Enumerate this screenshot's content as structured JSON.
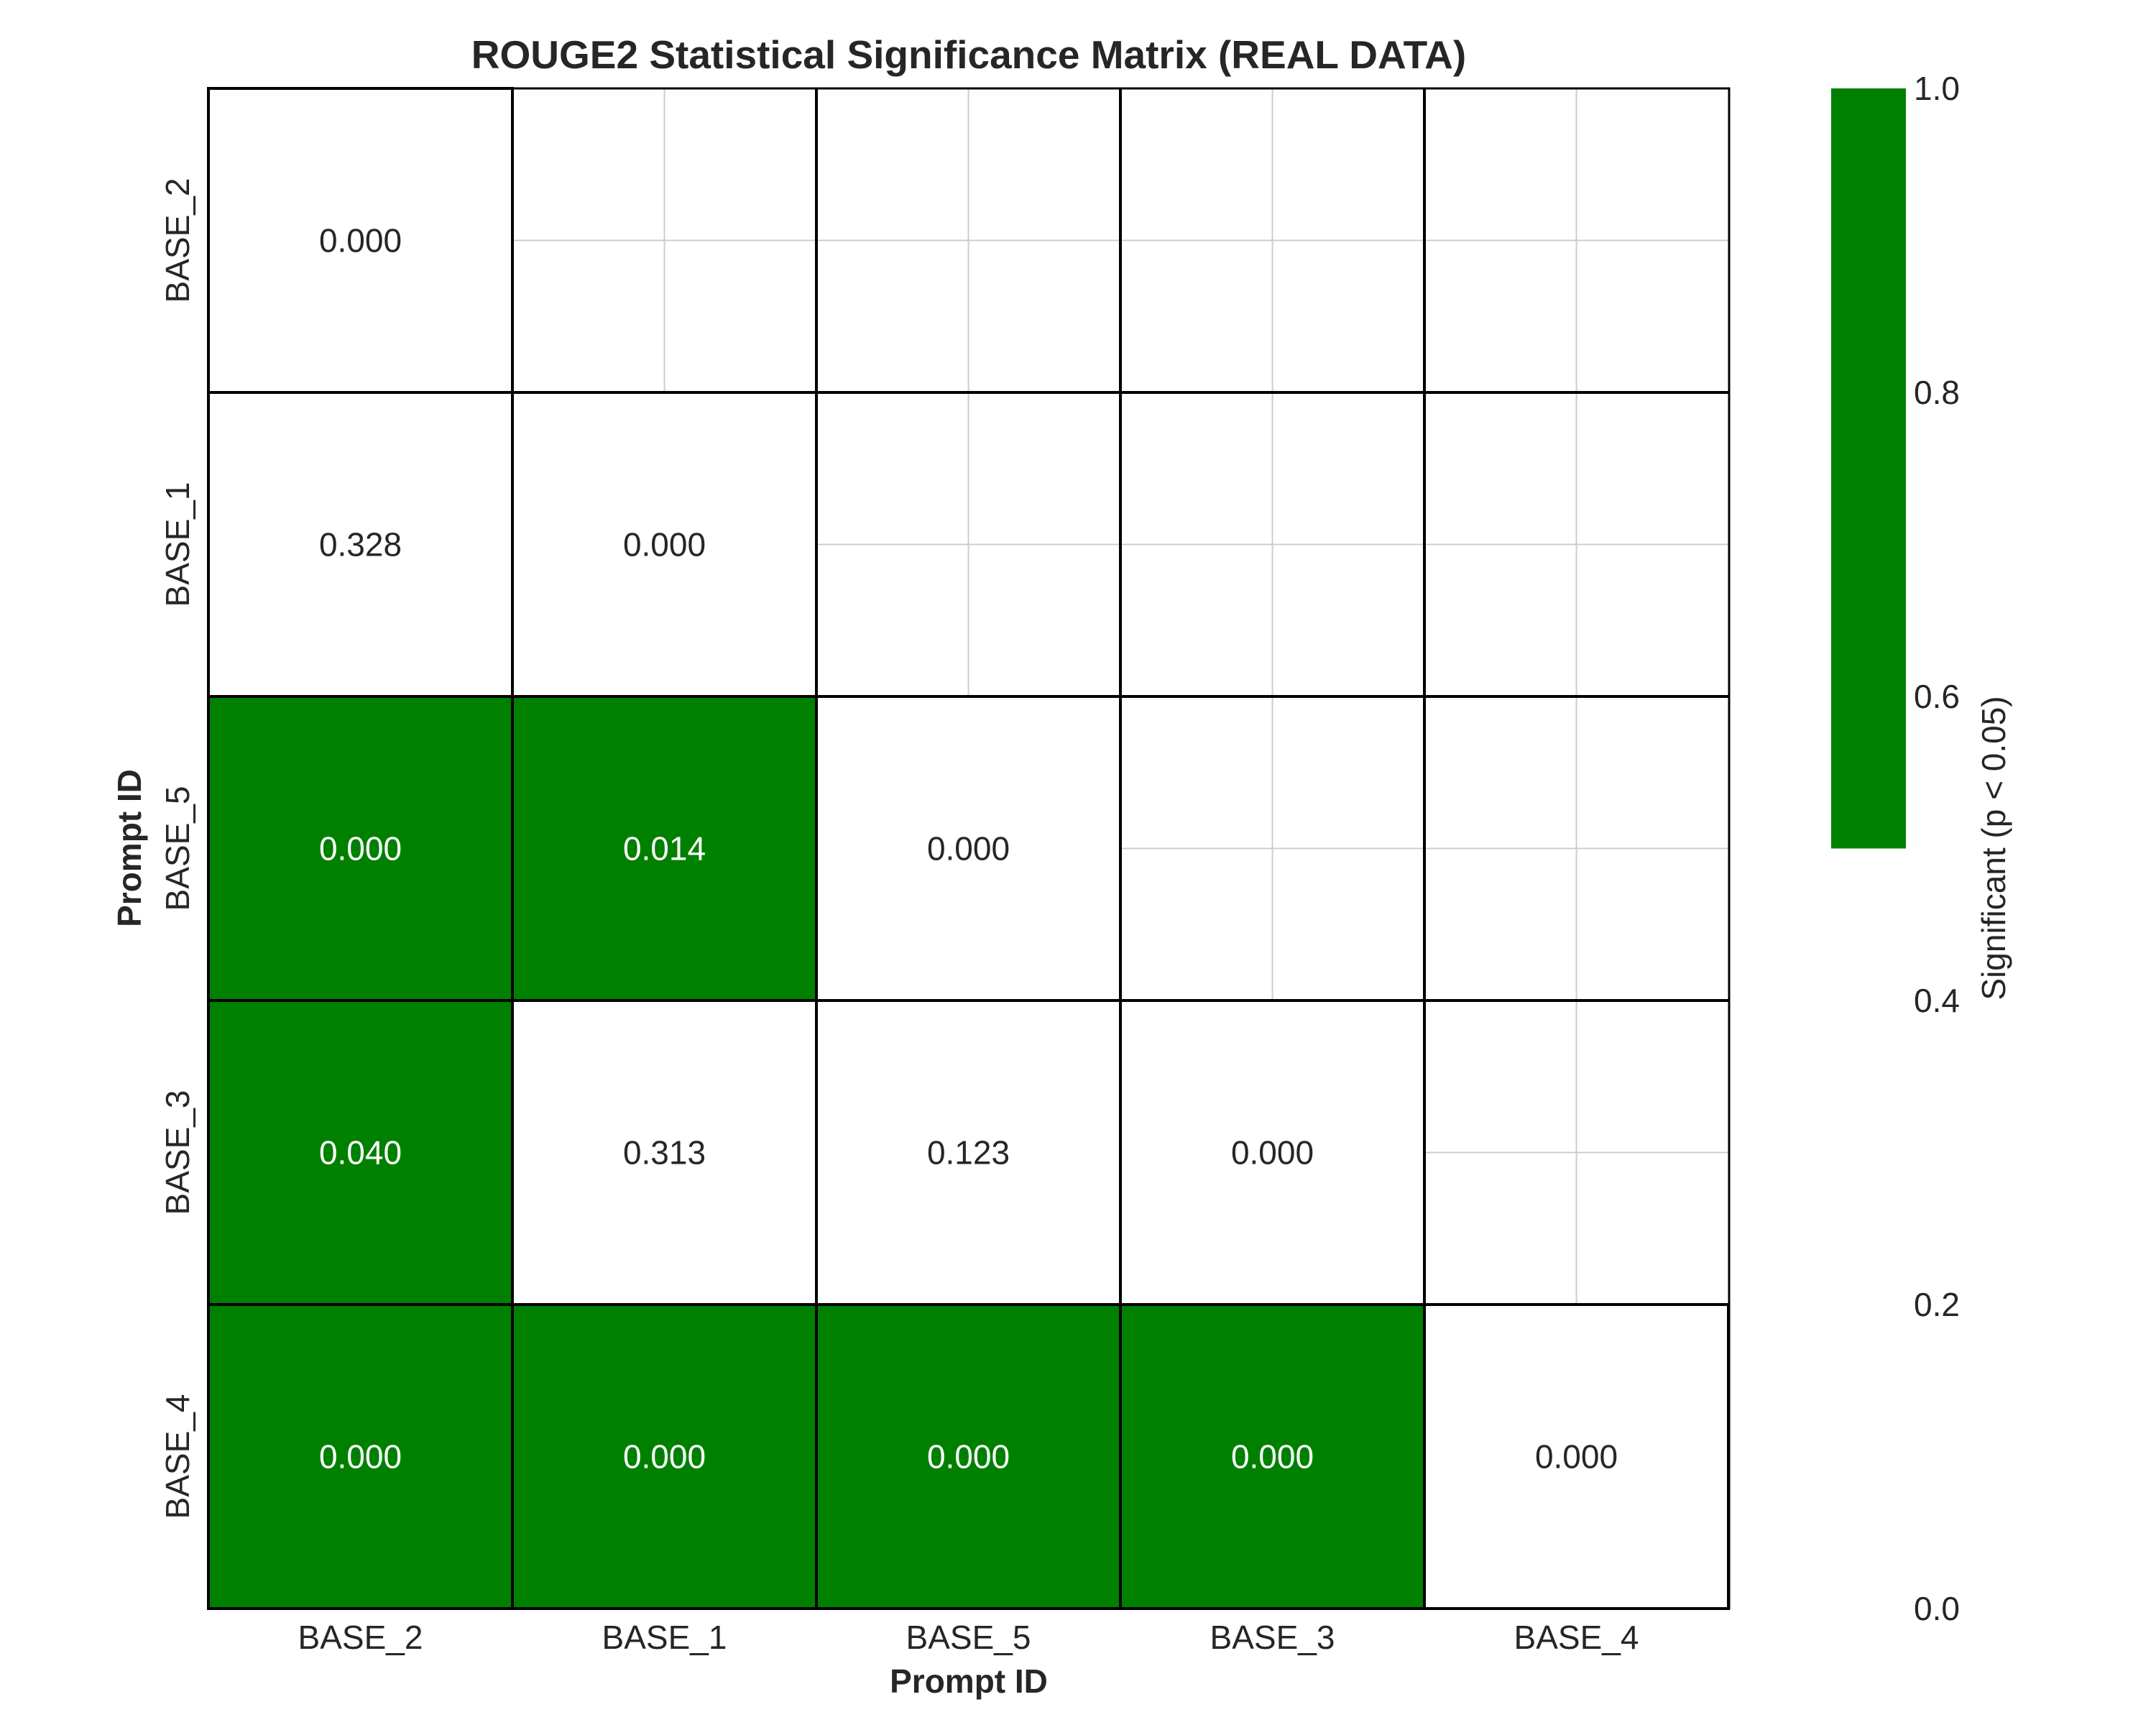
{
  "chart_data": {
    "type": "heatmap",
    "title": "ROUGE2 Statistical Significance Matrix (REAL DATA)",
    "xlabel": "Prompt ID",
    "ylabel": "Prompt ID",
    "x_categories": [
      "BASE_2",
      "BASE_1",
      "BASE_5",
      "BASE_3",
      "BASE_4"
    ],
    "y_categories": [
      "BASE_2",
      "BASE_1",
      "BASE_5",
      "BASE_3",
      "BASE_4"
    ],
    "mask": "upper triangle hidden",
    "cells": [
      {
        "row": "BASE_2",
        "col": "BASE_2",
        "value": "0.000",
        "significant": 0
      },
      {
        "row": "BASE_1",
        "col": "BASE_2",
        "value": "0.328",
        "significant": 0
      },
      {
        "row": "BASE_1",
        "col": "BASE_1",
        "value": "0.000",
        "significant": 0
      },
      {
        "row": "BASE_5",
        "col": "BASE_2",
        "value": "0.000",
        "significant": 1
      },
      {
        "row": "BASE_5",
        "col": "BASE_1",
        "value": "0.014",
        "significant": 1
      },
      {
        "row": "BASE_5",
        "col": "BASE_5",
        "value": "0.000",
        "significant": 0
      },
      {
        "row": "BASE_3",
        "col": "BASE_2",
        "value": "0.040",
        "significant": 1
      },
      {
        "row": "BASE_3",
        "col": "BASE_1",
        "value": "0.313",
        "significant": 0
      },
      {
        "row": "BASE_3",
        "col": "BASE_5",
        "value": "0.123",
        "significant": 0
      },
      {
        "row": "BASE_3",
        "col": "BASE_3",
        "value": "0.000",
        "significant": 0
      },
      {
        "row": "BASE_4",
        "col": "BASE_2",
        "value": "0.000",
        "significant": 1
      },
      {
        "row": "BASE_4",
        "col": "BASE_1",
        "value": "0.000",
        "significant": 1
      },
      {
        "row": "BASE_4",
        "col": "BASE_5",
        "value": "0.000",
        "significant": 1
      },
      {
        "row": "BASE_4",
        "col": "BASE_3",
        "value": "0.000",
        "significant": 1
      },
      {
        "row": "BASE_4",
        "col": "BASE_4",
        "value": "0.000",
        "significant": 0
      }
    ],
    "colorbar": {
      "label": "Significant (p < 0.05)",
      "ticks": [
        "0.0",
        "0.2",
        "0.4",
        "0.6",
        "0.8",
        "1.0"
      ],
      "range": [
        0,
        1
      ],
      "filled_range": [
        0.5,
        1.0
      ]
    },
    "colors": {
      "significant": "#008000",
      "not_significant": "#ffffff",
      "grid": "#cccccc",
      "border": "#000000",
      "text_dark": "#262626",
      "text_light": "#ffffff"
    },
    "grid": true
  }
}
